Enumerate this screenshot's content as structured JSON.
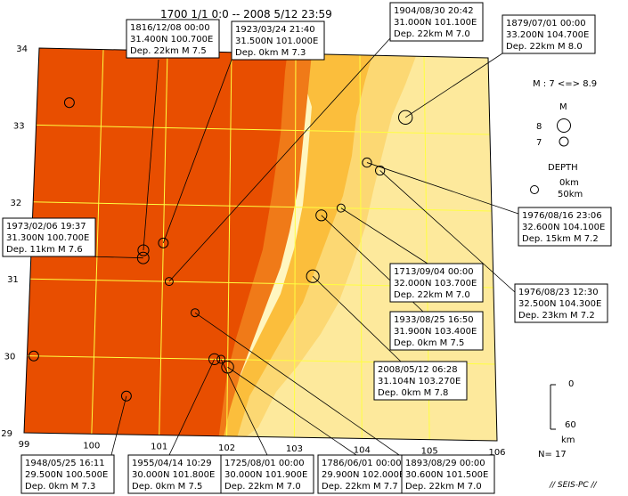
{
  "header": {
    "title": "1700 1/1  0:0 -- 2008 5/12 23:59"
  },
  "map": {
    "lon_range": [
      99,
      106
    ],
    "lat_range": [
      29,
      34
    ],
    "lon_ticks": [
      "99",
      "100",
      "101",
      "102",
      "103",
      "104",
      "105",
      "106"
    ],
    "lat_ticks": [
      "29",
      "30",
      "31",
      "32",
      "33",
      "34"
    ]
  },
  "colors": {
    "lowland_dark": "#e84e00",
    "lowland": "#f07a18",
    "mid_high": "#f59a20",
    "mid": "#fbbe3c",
    "mid_light": "#fcd873",
    "high_light": "#fde99c",
    "plain": "#fff6c0",
    "grid": "#ffff40"
  },
  "events": [
    {
      "id": "e1816",
      "lat": 31.4,
      "lon": 100.7,
      "label": [
        "1816/12/08 00:00",
        "31.400N  100.700E",
        "Dep. 22km    M 7.5"
      ]
    },
    {
      "id": "e1923",
      "lat": 31.5,
      "lon": 101.0,
      "label": [
        "1923/03/24 21:40",
        "31.500N  101.000E",
        "Dep. 0km    M 7.3"
      ]
    },
    {
      "id": "e1904",
      "lat": 31.0,
      "lon": 101.1,
      "label": [
        "1904/08/30 20:42",
        "31.000N  101.100E",
        "Dep. 22km    M 7.0"
      ]
    },
    {
      "id": "e1879",
      "lat": 33.2,
      "lon": 104.7,
      "label": [
        "1879/07/01 00:00",
        "33.200N  104.700E",
        "Dep. 22km    M 8.0"
      ]
    },
    {
      "id": "e1973",
      "lat": 31.3,
      "lon": 100.7,
      "label": [
        "1973/02/06 19:37",
        "31.300N  100.700E",
        "Dep. 11km    M 7.6"
      ]
    },
    {
      "id": "e1976a",
      "lat": 32.6,
      "lon": 104.1,
      "label": [
        "1976/08/16 23:06",
        "32.600N  104.100E",
        "Dep. 15km    M 7.2"
      ]
    },
    {
      "id": "e1713",
      "lat": 32.0,
      "lon": 103.7,
      "label": [
        "1713/09/04 00:00",
        "32.000N  103.700E",
        "Dep. 22km    M 7.0"
      ]
    },
    {
      "id": "e1976b",
      "lat": 32.5,
      "lon": 104.3,
      "label": [
        "1976/08/23 12:30",
        "32.500N  104.300E",
        "Dep. 23km    M 7.2"
      ]
    },
    {
      "id": "e1933",
      "lat": 31.9,
      "lon": 103.4,
      "label": [
        "1933/08/25 16:50",
        "31.900N  103.400E",
        "Dep. 0km    M 7.5"
      ]
    },
    {
      "id": "e2008",
      "lat": 31.104,
      "lon": 103.27,
      "label": [
        "2008/05/12 06:28",
        "31.104N  103.270E",
        "Dep. 0km    M 7.8"
      ]
    },
    {
      "id": "e1948",
      "lat": 29.5,
      "lon": 100.5,
      "label": [
        "1948/05/25 16:11",
        "29.500N  100.500E",
        "Dep. 0km    M 7.3"
      ]
    },
    {
      "id": "e1955",
      "lat": 30.0,
      "lon": 101.8,
      "label": [
        "1955/04/14 10:29",
        "30.000N  101.800E",
        "Dep. 0km    M 7.5"
      ]
    },
    {
      "id": "e1725",
      "lat": 30.0,
      "lon": 101.9,
      "label": [
        "1725/08/01 00:00",
        "30.000N  101.900E",
        "Dep. 22km    M 7.0"
      ]
    },
    {
      "id": "e1786",
      "lat": 29.9,
      "lon": 102.0,
      "label": [
        "1786/06/01 00:00",
        "29.900N  102.000E",
        "Dep. 22km    M 7.7"
      ]
    },
    {
      "id": "e1893",
      "lat": 30.6,
      "lon": 101.5,
      "label": [
        "1893/08/29 00:00",
        "30.600N  101.500E",
        "Dep. 22km    M 7.0"
      ]
    },
    {
      "id": "u1",
      "lat": 33.3,
      "lon": 99.5,
      "label": null
    },
    {
      "id": "u2",
      "lat": 30.0,
      "lon": 99.1,
      "label": null
    }
  ],
  "legend": {
    "magnitude_range": "M : 7 <=> 8.9",
    "magnitude_title": "M",
    "mag_8": "8",
    "mag_7": "7",
    "depth_title": "DEPTH",
    "depth_0": "0km",
    "depth_50": "50km",
    "scale_0": "0",
    "scale_60": "60",
    "scale_unit": "km",
    "count": "N= 17"
  },
  "footer": {
    "credit": "// SEIS-PC //"
  }
}
